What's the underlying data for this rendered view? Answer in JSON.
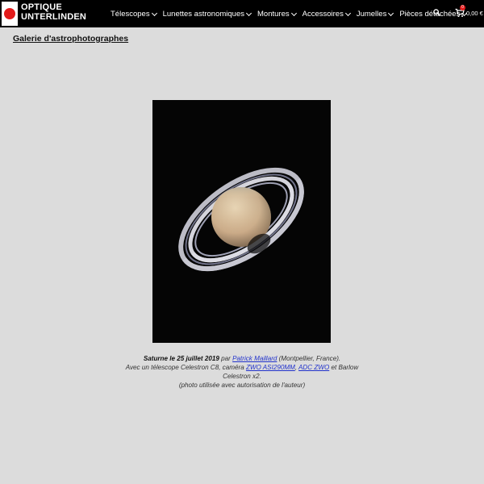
{
  "header": {
    "brand_line1": "OPTIQUE",
    "brand_line2": "UNTERLINDEN",
    "nav": [
      {
        "label": "Télescopes"
      },
      {
        "label": "Lunettes astronomiques"
      },
      {
        "label": "Montures"
      },
      {
        "label": "Accessoires"
      },
      {
        "label": "Jumelles"
      },
      {
        "label": "Pièces détachées"
      }
    ],
    "search_icon": "search-icon",
    "cart": {
      "icon": "cart-icon",
      "count": "0",
      "total": "0,00 €"
    }
  },
  "breadcrumb": {
    "link": "Galerie d'astrophotographes"
  },
  "photo": {
    "subject": "Saturn with rings"
  },
  "caption": {
    "title": "Saturne le 25 juillet 2019",
    "by": " par ",
    "author": "Patrick Maillard",
    "location": " (Montpellier, France).",
    "line2_prefix": "Avec un télescope Celestron C8, caméra ",
    "camera": "ZWO ASI290MM",
    "sep": ", ",
    "adc": "ADC ZWO",
    "line2_suffix": " et Barlow Celestron x2.",
    "line3": "(photo utilisée avec autorisation de l'auteur)"
  }
}
